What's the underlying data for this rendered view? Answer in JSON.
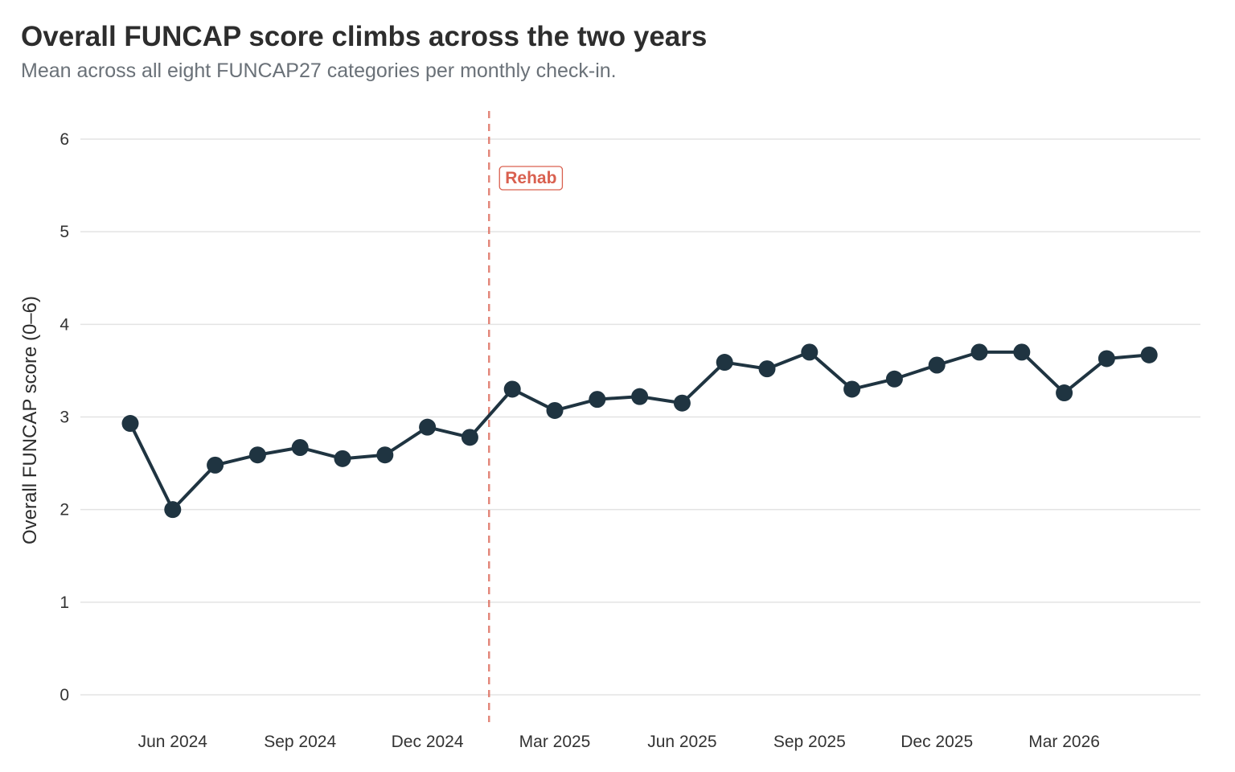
{
  "title": "Overall FUNCAP score climbs across the two years",
  "subtitle": "Mean across all eight FUNCAP27 categories per monthly check-in.",
  "colors": {
    "line": "#1f3441",
    "grid": "#e3e3e3",
    "annotation": "#d9604f"
  },
  "chart_data": {
    "type": "line",
    "ylabel": "Overall FUNCAP score (0–6)",
    "xlabel": "",
    "ylim": [
      0,
      6
    ],
    "y_ticks": [
      0,
      1,
      2,
      3,
      4,
      5,
      6
    ],
    "x_ticks": [
      "Jun 2024",
      "Sep 2024",
      "Dec 2024",
      "Mar 2025",
      "Jun 2025",
      "Sep 2025",
      "Dec 2025",
      "Mar 2026"
    ],
    "grid": "horizontal",
    "series": [
      {
        "x": [
          "2024-05",
          "2024-06",
          "2024-07",
          "2024-08",
          "2024-09",
          "2024-10",
          "2024-11",
          "2024-12",
          "2025-01",
          "2025-02",
          "2025-03",
          "2025-04",
          "2025-05",
          "2025-06",
          "2025-07",
          "2025-08",
          "2025-09",
          "2025-10",
          "2025-11",
          "2025-12",
          "2026-01",
          "2026-02",
          "2026-03",
          "2026-04",
          "2026-05"
        ],
        "values": [
          2.93,
          2.0,
          2.48,
          2.59,
          2.67,
          2.55,
          2.59,
          2.89,
          2.78,
          3.3,
          3.07,
          3.19,
          3.22,
          3.15,
          3.59,
          3.52,
          3.7,
          3.3,
          3.41,
          3.56,
          3.7,
          3.7,
          3.26,
          3.63,
          3.67
        ]
      }
    ],
    "annotations": [
      {
        "type": "vline",
        "x": "2025-01-15",
        "label": "Rehab",
        "style": "dashed"
      }
    ]
  }
}
